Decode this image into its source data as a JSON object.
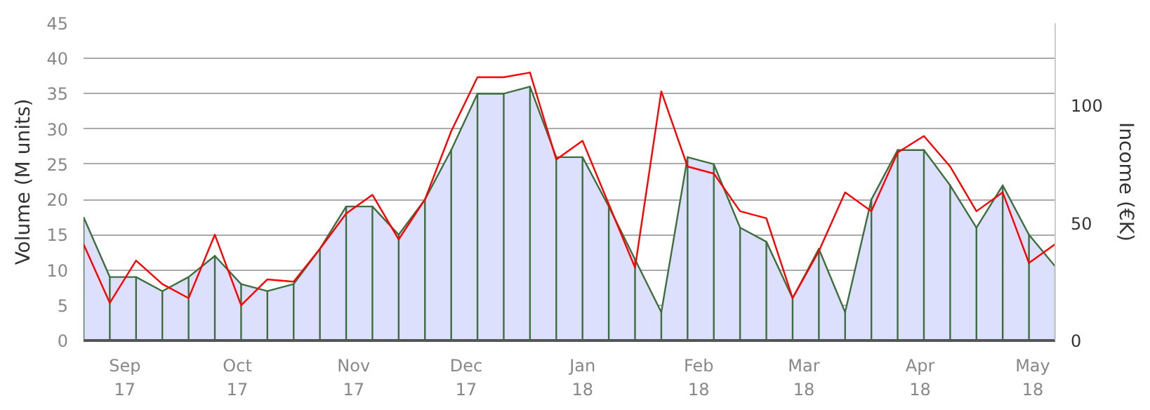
{
  "chart_data": {
    "type": "area",
    "ylabel": "Volume (M units)",
    "y2label": "Income (€K)",
    "x": [
      "2017-08-21",
      "2017-08-28",
      "2017-09-04",
      "2017-09-11",
      "2017-09-18",
      "2017-09-25",
      "2017-10-02",
      "2017-10-09",
      "2017-10-16",
      "2017-10-23",
      "2017-10-30",
      "2017-11-06",
      "2017-11-13",
      "2017-11-20",
      "2017-11-27",
      "2017-12-04",
      "2017-12-11",
      "2017-12-18",
      "2017-12-25",
      "2018-01-01",
      "2018-01-08",
      "2018-01-15",
      "2018-01-22",
      "2018-01-29",
      "2018-02-05",
      "2018-02-12",
      "2018-02-19",
      "2018-02-26",
      "2018-03-05",
      "2018-03-12",
      "2018-03-19",
      "2018-03-26",
      "2018-04-02",
      "2018-04-09",
      "2018-04-16",
      "2018-04-23",
      "2018-04-30",
      "2018-05-07"
    ],
    "series": [
      {
        "color": "#3d6e3d",
        "values": [
          17.5,
          9,
          9,
          7,
          9,
          12,
          8,
          7,
          8,
          13,
          19,
          19,
          15,
          20,
          27,
          35,
          35,
          36,
          26,
          26,
          19,
          11.5,
          4,
          26,
          25,
          16,
          14,
          6,
          13,
          4,
          20,
          27,
          27,
          22,
          16,
          22,
          15,
          10.5
        ]
      },
      {
        "type": "line",
        "axis": "y2",
        "color": "#ff0000",
        "values": [
          41,
          16,
          34,
          24,
          18,
          45,
          15,
          26,
          25,
          39,
          54,
          62,
          43,
          60,
          89,
          112,
          112,
          114,
          77,
          85,
          58,
          31,
          106,
          74,
          71,
          55,
          52,
          18,
          38,
          63,
          55,
          80,
          87,
          74,
          55,
          63,
          33,
          41
        ]
      }
    ],
    "xlim": [
      "2017-08-21",
      "2018-05-07"
    ],
    "xticks": [
      {
        "value": "2017-09-01",
        "label": "Sep\n17"
      },
      {
        "value": "2017-10-01",
        "label": "Oct\n17"
      },
      {
        "value": "2017-11-01",
        "label": "Nov\n17"
      },
      {
        "value": "2017-12-01",
        "label": "Dec\n17"
      },
      {
        "value": "2018-01-01",
        "label": "Jan\n18"
      },
      {
        "value": "2018-02-01",
        "label": "Feb\n18"
      },
      {
        "value": "2018-03-01",
        "label": "Mar\n18"
      },
      {
        "value": "2018-04-01",
        "label": "Apr\n18"
      },
      {
        "value": "2018-05-01",
        "label": "May\n18"
      }
    ],
    "ylim": [
      0,
      45
    ],
    "yticks": [
      0,
      5,
      10,
      15,
      20,
      25,
      30,
      35,
      40,
      45
    ],
    "y2lim": [
      0,
      135
    ],
    "y2ticks": [
      0,
      50,
      100
    ],
    "grid": "y",
    "marker": "none",
    "line_style": "solid"
  }
}
